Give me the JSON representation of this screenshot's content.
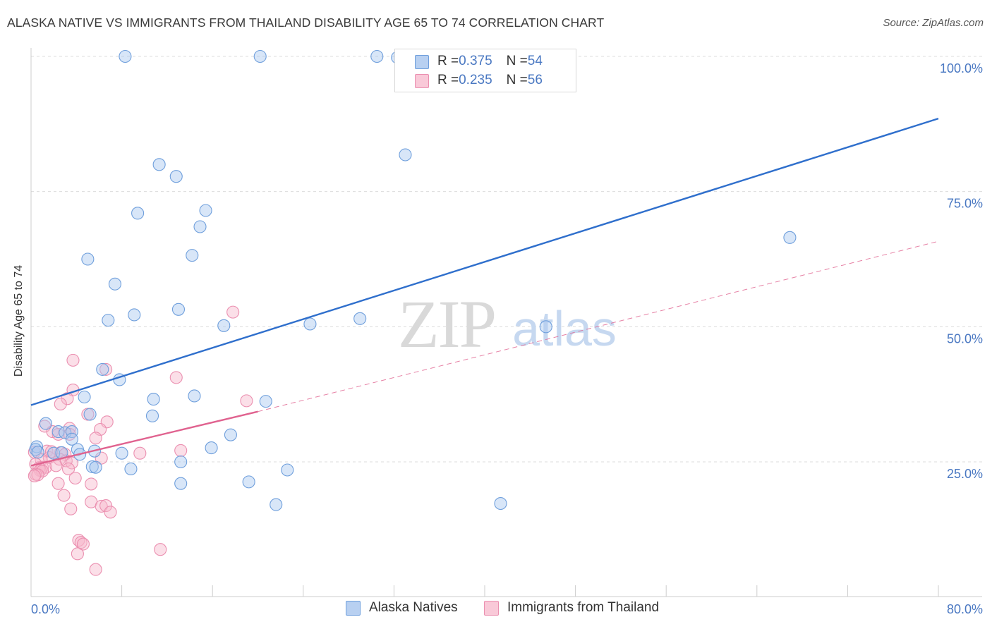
{
  "title": "ALASKA NATIVE VS IMMIGRANTS FROM THAILAND DISABILITY AGE 65 TO 74 CORRELATION CHART",
  "source": "Source: ZipAtlas.com",
  "watermark": {
    "zip": "ZIP",
    "atlas": "atlas"
  },
  "colors": {
    "blue_fill": "#a9c7ef",
    "blue_stroke": "#6f9fdc",
    "blue_line": "#2f6fcc",
    "pink_fill": "#f6b9cd",
    "pink_stroke": "#eb8fb0",
    "pink_line": "#e0628f",
    "grid": "#dcdcdc",
    "tick_text": "#4a78c2"
  },
  "legend": [
    {
      "r_label": "R = ",
      "r_value": "0.375",
      "n_label": "N = ",
      "n_value": "54"
    },
    {
      "r_label": "R = ",
      "r_value": "0.235",
      "n_label": "N = ",
      "n_value": "56"
    }
  ],
  "chart_data": {
    "type": "scatter",
    "title": "ALASKA NATIVE VS IMMIGRANTS FROM THAILAND DISABILITY AGE 65 TO 74 CORRELATION CHART",
    "xlabel": "",
    "ylabel": "Disability Age 65 to 74",
    "xlim": [
      0,
      80
    ],
    "ylim": [
      0,
      102
    ],
    "x_tick_labels": [
      "0.0%",
      "80.0%"
    ],
    "y_ticks": [
      25,
      50,
      75,
      100
    ],
    "y_tick_labels": [
      "25.0%",
      "50.0%",
      "75.0%",
      "100.0%"
    ],
    "grid": true,
    "legend_position": "top-center and bottom",
    "series": [
      {
        "name": "Alaska Natives",
        "color": "#a9c7ef",
        "trend": {
          "x0": 0,
          "y0": 35.5,
          "x1": 80,
          "y1": 88.5,
          "style": "solid"
        },
        "points": [
          [
            8.3,
            100
          ],
          [
            20.2,
            100
          ],
          [
            30.5,
            100
          ],
          [
            32.3,
            99.8
          ],
          [
            33.0,
            81.8
          ],
          [
            11.3,
            80.0
          ],
          [
            12.8,
            77.8
          ],
          [
            9.4,
            71.0
          ],
          [
            15.4,
            71.5
          ],
          [
            14.9,
            68.5
          ],
          [
            66.9,
            66.5
          ],
          [
            5.0,
            62.5
          ],
          [
            14.2,
            63.2
          ],
          [
            7.4,
            57.9
          ],
          [
            6.8,
            51.2
          ],
          [
            9.1,
            52.2
          ],
          [
            13.0,
            53.2
          ],
          [
            17.0,
            50.2
          ],
          [
            24.6,
            50.5
          ],
          [
            29.0,
            51.5
          ],
          [
            45.4,
            50.0
          ],
          [
            6.3,
            42.1
          ],
          [
            7.8,
            40.2
          ],
          [
            4.7,
            37.0
          ],
          [
            10.8,
            36.6
          ],
          [
            14.4,
            37.2
          ],
          [
            20.7,
            36.2
          ],
          [
            5.2,
            33.8
          ],
          [
            10.7,
            33.5
          ],
          [
            1.3,
            32.1
          ],
          [
            2.4,
            30.6
          ],
          [
            3.0,
            30.4
          ],
          [
            3.6,
            30.6
          ],
          [
            17.6,
            30.0
          ],
          [
            0.5,
            27.8
          ],
          [
            0.4,
            27.3
          ],
          [
            3.6,
            29.2
          ],
          [
            4.1,
            27.3
          ],
          [
            5.6,
            27.0
          ],
          [
            2.0,
            26.6
          ],
          [
            2.7,
            26.7
          ],
          [
            4.3,
            26.4
          ],
          [
            8.0,
            26.6
          ],
          [
            15.9,
            27.6
          ],
          [
            5.4,
            24.1
          ],
          [
            5.7,
            24.0
          ],
          [
            8.8,
            23.7
          ],
          [
            13.2,
            25.0
          ],
          [
            22.6,
            23.5
          ],
          [
            13.2,
            21.0
          ],
          [
            19.2,
            21.3
          ],
          [
            21.6,
            17.1
          ],
          [
            41.4,
            17.3
          ],
          [
            0.6,
            26.8
          ]
        ]
      },
      {
        "name": "Immigrants from Thailand",
        "color": "#f6b9cd",
        "trend": {
          "x0": 0,
          "y0": 24.3,
          "x1": 20,
          "y1": 34.3,
          "dash_x1": 80,
          "dash_y1": 65.8,
          "style": "solid-then-dashed"
        },
        "points": [
          [
            17.8,
            52.7
          ],
          [
            3.7,
            43.8
          ],
          [
            6.6,
            42.1
          ],
          [
            12.8,
            40.6
          ],
          [
            3.7,
            38.3
          ],
          [
            3.2,
            36.7
          ],
          [
            2.6,
            35.7
          ],
          [
            19.0,
            36.3
          ],
          [
            5.0,
            33.8
          ],
          [
            6.7,
            32.4
          ],
          [
            1.2,
            31.6
          ],
          [
            3.4,
            31.2
          ],
          [
            6.1,
            31.0
          ],
          [
            1.9,
            30.6
          ],
          [
            2.4,
            30.1
          ],
          [
            3.4,
            30.1
          ],
          [
            5.7,
            29.4
          ],
          [
            0.3,
            26.8
          ],
          [
            1.4,
            27.0
          ],
          [
            2.6,
            26.7
          ],
          [
            3.0,
            26.4
          ],
          [
            1.6,
            25.8
          ],
          [
            0.9,
            25.4
          ],
          [
            2.5,
            25.5
          ],
          [
            3.1,
            25.2
          ],
          [
            3.6,
            24.8
          ],
          [
            6.2,
            25.7
          ],
          [
            9.6,
            26.6
          ],
          [
            13.2,
            27.1
          ],
          [
            0.4,
            24.6
          ],
          [
            1.0,
            24.0
          ],
          [
            1.3,
            24.0
          ],
          [
            2.2,
            24.3
          ],
          [
            0.7,
            23.9
          ],
          [
            0.8,
            23.4
          ],
          [
            1.0,
            23.3
          ],
          [
            3.3,
            23.7
          ],
          [
            0.4,
            22.7
          ],
          [
            0.6,
            22.6
          ],
          [
            0.3,
            22.4
          ],
          [
            3.9,
            22.0
          ],
          [
            2.4,
            21.0
          ],
          [
            5.3,
            20.9
          ],
          [
            2.9,
            18.8
          ],
          [
            5.3,
            17.6
          ],
          [
            6.2,
            16.8
          ],
          [
            6.6,
            16.9
          ],
          [
            7.0,
            15.7
          ],
          [
            3.5,
            16.3
          ],
          [
            4.2,
            10.5
          ],
          [
            4.4,
            10.1
          ],
          [
            4.6,
            9.8
          ],
          [
            11.4,
            8.8
          ],
          [
            4.1,
            8.0
          ],
          [
            5.7,
            5.1
          ],
          [
            1.8,
            26.9
          ]
        ]
      }
    ]
  }
}
